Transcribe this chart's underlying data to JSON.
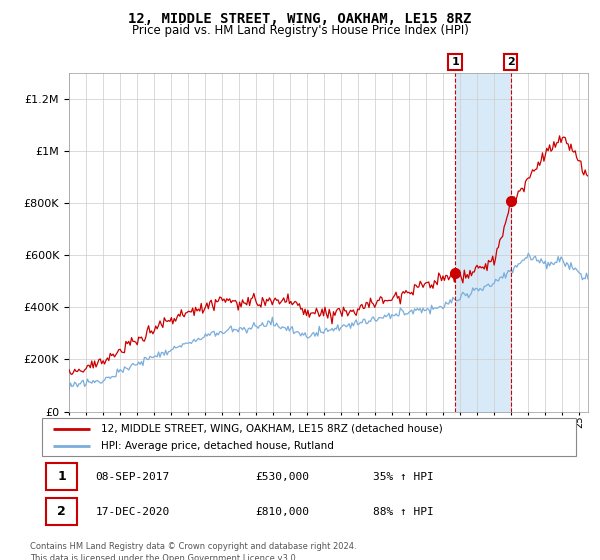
{
  "title": "12, MIDDLE STREET, WING, OAKHAM, LE15 8RZ",
  "subtitle": "Price paid vs. HM Land Registry's House Price Index (HPI)",
  "legend_line1": "12, MIDDLE STREET, WING, OAKHAM, LE15 8RZ (detached house)",
  "legend_line2": "HPI: Average price, detached house, Rutland",
  "annotation1_label": "1",
  "annotation1_date": "08-SEP-2017",
  "annotation1_price": "£530,000",
  "annotation1_hpi": "35% ↑ HPI",
  "annotation2_label": "2",
  "annotation2_date": "17-DEC-2020",
  "annotation2_price": "£810,000",
  "annotation2_hpi": "88% ↑ HPI",
  "footnote": "Contains HM Land Registry data © Crown copyright and database right 2024.\nThis data is licensed under the Open Government Licence v3.0.",
  "red_color": "#cc0000",
  "blue_color": "#7aaddb",
  "shading_color": "#d8eaf8",
  "annotation_box_color": "#cc0000",
  "ylim_min": 0,
  "ylim_max": 1300000,
  "sale1_year": 2017.69,
  "sale1_value": 530000,
  "sale2_year": 2020.96,
  "sale2_value": 810000
}
